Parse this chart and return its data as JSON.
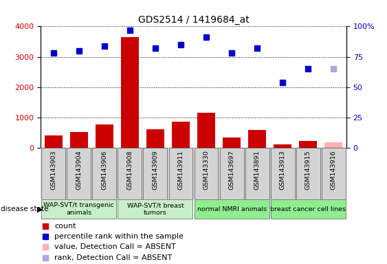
{
  "title": "GDS2514 / 1419684_at",
  "samples": [
    "GSM143903",
    "GSM143904",
    "GSM143906",
    "GSM143908",
    "GSM143909",
    "GSM143911",
    "GSM143330",
    "GSM143697",
    "GSM143891",
    "GSM143913",
    "GSM143915",
    "GSM143916"
  ],
  "counts": [
    400,
    520,
    780,
    3650,
    610,
    870,
    1150,
    330,
    580,
    120,
    220,
    180
  ],
  "percentile_ranks": [
    78,
    80,
    84,
    97,
    82,
    85,
    91,
    78,
    82,
    54,
    65,
    65
  ],
  "absent_sample_idx": 11,
  "bar_color": "#cc0000",
  "bar_absent_color": "#ffb0b0",
  "dot_color": "#0000cc",
  "dot_absent_color": "#aaaadd",
  "groups": [
    {
      "label": "WAP-SVT/t transgenic\nanimals",
      "start": 0,
      "end": 3,
      "color": "#c8f0c8"
    },
    {
      "label": "WAP-SVT/t breast\ntumors",
      "start": 3,
      "end": 6,
      "color": "#c8f0c8"
    },
    {
      "label": "normal NMRI animals",
      "start": 6,
      "end": 9,
      "color": "#90ee90"
    },
    {
      "label": "breast cancer cell lines",
      "start": 9,
      "end": 12,
      "color": "#90ee90"
    }
  ],
  "ylim_left": [
    0,
    4000
  ],
  "ylim_right": [
    0,
    100
  ],
  "yticks_left": [
    0,
    1000,
    2000,
    3000,
    4000
  ],
  "yticks_right": [
    0,
    25,
    50,
    75,
    100
  ],
  "ytick_labels_right": [
    "0",
    "25",
    "50",
    "75",
    "100%"
  ]
}
